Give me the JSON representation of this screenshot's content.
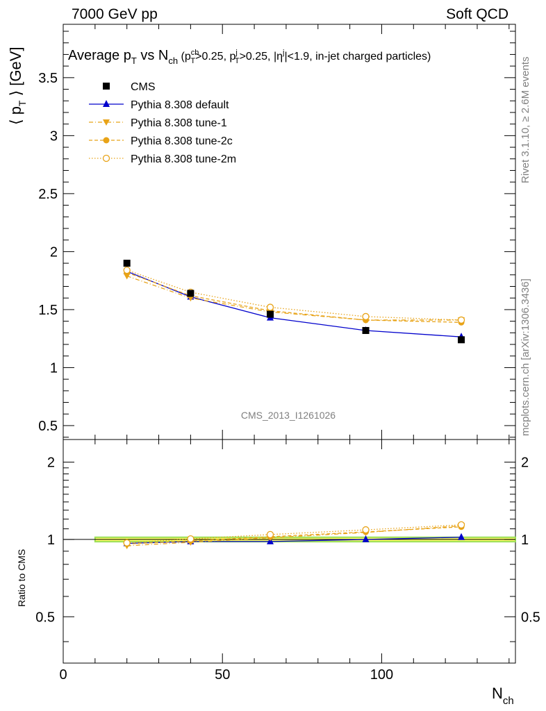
{
  "header": {
    "left": "7000 GeV pp",
    "right": "Soft QCD"
  },
  "side_labels": {
    "top": "Rivet 3.1.10, ≥ 2.6M events",
    "bottom": "mcplots.cern.ch [arXiv:1306.3436]"
  },
  "analysis_id": "CMS_2013_I1261026",
  "colors": {
    "cms": "#000000",
    "default": "#0000cc",
    "tune": "#e8a317",
    "band": "#ffff66",
    "band_edge": "#99dd55"
  },
  "chart_data": [
    {
      "type": "line",
      "panel": "main",
      "title": "Average p_T vs N_ch (p_T^ch>0.25, p_T^j>0.25, |η^j|<1.9, in-jet charged particles)",
      "ylabel": "⟨ p_T ⟩ [GeV]",
      "xlim": [
        0,
        142
      ],
      "ylim": [
        0.38,
        3.96
      ],
      "yticks": [
        0.5,
        1,
        1.5,
        2,
        2.5,
        3,
        3.5
      ],
      "ytick_labels": [
        "0.5",
        "1",
        "1.5",
        "2",
        "2.5",
        "3",
        "3.5"
      ],
      "legend_position": "top-left",
      "x": [
        20,
        40,
        65,
        95,
        125
      ],
      "series": [
        {
          "name": "CMS",
          "marker": "square",
          "line": "none",
          "values": [
            1.9,
            1.64,
            1.46,
            1.32,
            1.24
          ]
        },
        {
          "name": "Pythia 8.308 default",
          "marker": "triangle-up",
          "line": "solid",
          "values": [
            1.83,
            1.61,
            1.43,
            1.32,
            1.265
          ]
        },
        {
          "name": "Pythia 8.308 tune-1",
          "marker": "triangle-down",
          "line": "dashdot",
          "values": [
            1.79,
            1.6,
            1.48,
            1.41,
            1.41
          ]
        },
        {
          "name": "Pythia 8.308 tune-2c",
          "marker": "circle",
          "line": "dashed",
          "values": [
            1.82,
            1.62,
            1.49,
            1.41,
            1.39
          ]
        },
        {
          "name": "Pythia 8.308 tune-2m",
          "marker": "circle-open",
          "line": "dotted",
          "values": [
            1.84,
            1.65,
            1.52,
            1.44,
            1.41
          ]
        }
      ]
    },
    {
      "type": "line",
      "panel": "ratio",
      "ylabel": "Ratio to CMS",
      "xlabel": "N_ch",
      "xlim": [
        0,
        142
      ],
      "ylim": [
        0.33,
        2.45
      ],
      "log_y": true,
      "yticks": [
        0.5,
        1,
        2
      ],
      "ytick_labels": [
        "0.5",
        "1",
        "2"
      ],
      "xticks": [
        0,
        50,
        100
      ],
      "xtick_labels": [
        "0",
        "50",
        "100"
      ],
      "reference_band": {
        "x_range": [
          10,
          142
        ],
        "low": 0.98,
        "high": 1.02
      },
      "x": [
        20,
        40,
        65,
        95,
        125
      ],
      "series": [
        {
          "name": "Pythia 8.308 default",
          "values": [
            0.965,
            0.982,
            0.982,
            1.0,
            1.02
          ]
        },
        {
          "name": "Pythia 8.308 tune-1",
          "values": [
            0.945,
            0.975,
            1.015,
            1.065,
            1.13
          ]
        },
        {
          "name": "Pythia 8.308 tune-2c",
          "values": [
            0.96,
            0.987,
            1.025,
            1.07,
            1.12
          ]
        },
        {
          "name": "Pythia 8.308 tune-2m",
          "values": [
            0.97,
            1.005,
            1.045,
            1.09,
            1.14
          ]
        }
      ]
    }
  ]
}
